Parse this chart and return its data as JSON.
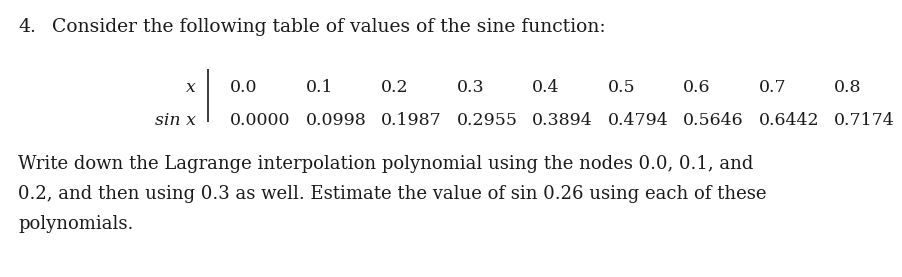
{
  "title_number": "4.",
  "title_text": "Consider the following table of values of the sine function:",
  "row1_label": "x",
  "row2_label": "sin x",
  "x_values": [
    "0.0",
    "0.1",
    "0.2",
    "0.3",
    "0.4",
    "0.5",
    "0.6",
    "0.7",
    "0.8"
  ],
  "sin_values": [
    "0.0000",
    "0.0998",
    "0.1987",
    "0.2955",
    "0.3894",
    "0.4794",
    "0.5646",
    "0.6442",
    "0.7174"
  ],
  "paragraph_lines": [
    "Write down the Lagrange interpolation polynomial using the nodes 0.0, 0.1, and",
    "0.2, and then using 0.3 as well. Estimate the value of sin 0.26 using each of these",
    "polynomials."
  ],
  "bg_color": "#ffffff",
  "text_color": "#1a1a1a",
  "font_size_title": 13.5,
  "font_size_table": 12.5,
  "font_size_body": 13.0,
  "fig_width": 9.03,
  "fig_height": 2.77,
  "dpi": 100
}
